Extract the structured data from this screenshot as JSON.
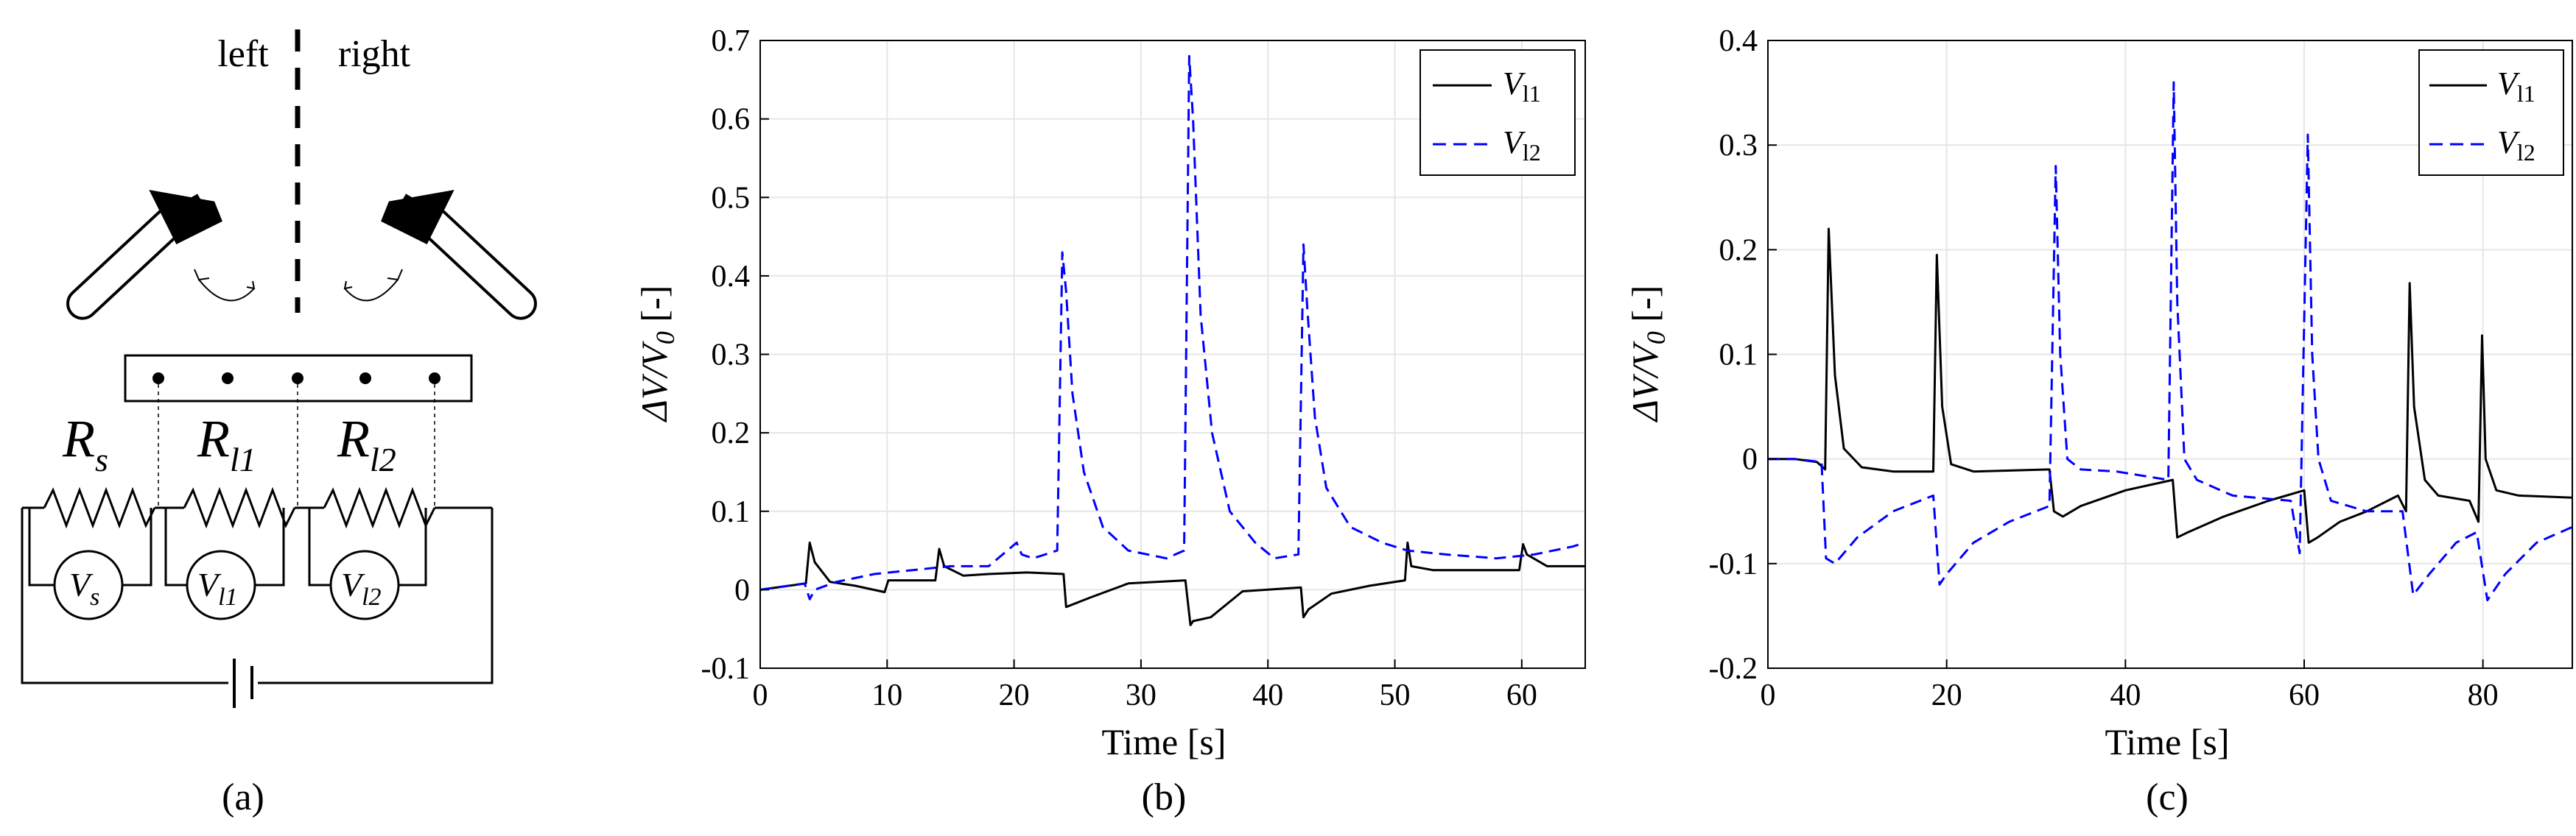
{
  "panels": {
    "a": "(a)",
    "b": "(b)",
    "c": "(c)"
  },
  "schematic": {
    "left_label": "left",
    "right_label": "right",
    "resistors": [
      {
        "base": "R",
        "sub": "s"
      },
      {
        "base": "R",
        "sub": "l1"
      },
      {
        "base": "R",
        "sub": "l2"
      }
    ],
    "voltmeters": [
      {
        "base": "V",
        "sub": "s"
      },
      {
        "base": "V",
        "sub": "l1"
      },
      {
        "base": "V",
        "sub": "l2"
      }
    ]
  },
  "chart_data": [
    {
      "type": "line",
      "panel": "(b)",
      "xlabel": "Time [s]",
      "ylabel": "ΔV/V0 [-]",
      "xlim": [
        0,
        65
      ],
      "ylim": [
        -0.1,
        0.7
      ],
      "xticks": [
        0,
        10,
        20,
        30,
        40,
        50,
        60
      ],
      "xtick_labels": [
        "0",
        "10",
        "20",
        "30",
        "40",
        "50",
        "60"
      ],
      "yticks": [
        -0.1,
        0,
        0.1,
        0.2,
        0.3,
        0.4,
        0.5,
        0.6,
        0.7
      ],
      "ytick_labels": [
        "-0.1",
        "0",
        "0.1",
        "0.2",
        "0.3",
        "0.4",
        "0.5",
        "0.6",
        "0.7"
      ],
      "grid": true,
      "legend": "top-right",
      "series": [
        {
          "name": "V_l1",
          "label_base": "V",
          "label_sub": "l1",
          "color": "#000000",
          "dash": "solid",
          "x": [
            0,
            3.6,
            3.9,
            4.3,
            5.5,
            7.5,
            9.8,
            10.1,
            13.8,
            14.1,
            14.5,
            16.0,
            18.0,
            21.0,
            23.9,
            24.1,
            26.0,
            29.0,
            33.5,
            33.9,
            34.1,
            35.5,
            38.0,
            42.6,
            42.8,
            43.2,
            45.0,
            48.0,
            50.8,
            51.0,
            51.3,
            53.0,
            56.0,
            59.8,
            60.1,
            60.4,
            62.0,
            65.0
          ],
          "values": [
            0,
            0.008,
            0.06,
            0.035,
            0.01,
            0.005,
            -0.003,
            0.012,
            0.012,
            0.052,
            0.03,
            0.018,
            0.02,
            0.022,
            0.02,
            -0.022,
            -0.01,
            0.008,
            0.012,
            -0.045,
            -0.04,
            -0.035,
            -0.002,
            0.003,
            -0.035,
            -0.025,
            -0.005,
            0.005,
            0.012,
            0.06,
            0.03,
            0.025,
            0.025,
            0.025,
            0.058,
            0.045,
            0.03,
            0.03
          ]
        },
        {
          "name": "V_l2",
          "label_base": "V",
          "label_sub": "l2",
          "color": "#0000ff",
          "dash": "dashed",
          "x": [
            0,
            3.5,
            3.9,
            4.3,
            6.0,
            9.0,
            12.0,
            15.0,
            18.0,
            20.2,
            20.6,
            21.5,
            23.4,
            23.8,
            24.1,
            24.6,
            25.5,
            27.0,
            29.0,
            32.0,
            33.4,
            33.8,
            34.1,
            34.7,
            35.6,
            37.0,
            39.0,
            40.5,
            42.4,
            42.8,
            43.1,
            43.7,
            44.6,
            46.5,
            49.0,
            51.0,
            54.0,
            58.0,
            61.0,
            64.0,
            65.0
          ],
          "values": [
            0,
            0.008,
            -0.012,
            0.0,
            0.01,
            0.02,
            0.025,
            0.03,
            0.03,
            0.06,
            0.045,
            0.04,
            0.05,
            0.43,
            0.38,
            0.25,
            0.15,
            0.08,
            0.05,
            0.04,
            0.05,
            0.68,
            0.6,
            0.35,
            0.2,
            0.1,
            0.06,
            0.04,
            0.045,
            0.44,
            0.36,
            0.22,
            0.13,
            0.08,
            0.06,
            0.05,
            0.045,
            0.04,
            0.045,
            0.055,
            0.06
          ]
        }
      ]
    },
    {
      "type": "line",
      "panel": "(c)",
      "xlabel": "Time [s]",
      "ylabel": "ΔV/V0 [-]",
      "xlim": [
        0,
        90
      ],
      "ylim": [
        -0.2,
        0.4
      ],
      "xticks": [
        0,
        20,
        40,
        60,
        80
      ],
      "xtick_labels": [
        "0",
        "20",
        "40",
        "60",
        "80"
      ],
      "yticks": [
        -0.2,
        -0.1,
        0,
        0.1,
        0.2,
        0.3,
        0.4
      ],
      "ytick_labels": [
        "-0.2",
        "-0.1",
        "0",
        "0.1",
        "0.2",
        "0.3",
        "0.4"
      ],
      "grid": true,
      "legend": "top-right",
      "series": [
        {
          "name": "V_l1",
          "label_base": "V",
          "label_sub": "l1",
          "color": "#000000",
          "dash": "solid",
          "x": [
            0,
            3.0,
            5.5,
            6.4,
            6.8,
            7.5,
            8.5,
            10.5,
            14.0,
            18.5,
            18.9,
            19.5,
            20.5,
            23.0,
            31.5,
            32.0,
            33.0,
            35.0,
            40.0,
            45.3,
            45.8,
            47.0,
            51.0,
            56.0,
            60.0,
            60.5,
            61.5,
            64.0,
            67.0,
            70.5,
            71.4,
            71.8,
            72.3,
            73.5,
            75.0,
            78.5,
            79.5,
            79.9,
            80.3,
            81.5,
            84.0,
            90.0
          ],
          "values": [
            0,
            0,
            -0.003,
            -0.01,
            0.22,
            0.08,
            0.01,
            -0.008,
            -0.012,
            -0.012,
            0.195,
            0.05,
            -0.005,
            -0.012,
            -0.01,
            -0.05,
            -0.055,
            -0.045,
            -0.03,
            -0.02,
            -0.075,
            -0.07,
            -0.055,
            -0.04,
            -0.03,
            -0.08,
            -0.075,
            -0.06,
            -0.05,
            -0.035,
            -0.05,
            0.168,
            0.05,
            -0.02,
            -0.035,
            -0.04,
            -0.06,
            0.118,
            0.0,
            -0.03,
            -0.035,
            -0.037
          ]
        },
        {
          "name": "V_l2",
          "label_base": "V",
          "label_sub": "l2",
          "color": "#0000ff",
          "dash": "dashed",
          "x": [
            0,
            3.0,
            6.0,
            6.5,
            7.5,
            10.0,
            14.0,
            18.5,
            19.2,
            20.0,
            23.0,
            27.0,
            31.5,
            32.2,
            32.7,
            33.5,
            35.0,
            39.0,
            44.8,
            45.4,
            45.8,
            46.6,
            48.0,
            52.0,
            58.5,
            59.5,
            60.4,
            60.9,
            61.6,
            63.0,
            67.0,
            71.0,
            72.2,
            74.0,
            77.0,
            79.3,
            80.5,
            82.5,
            86.0,
            90.0
          ],
          "values": [
            0,
            0,
            -0.003,
            -0.095,
            -0.1,
            -0.075,
            -0.05,
            -0.035,
            -0.12,
            -0.11,
            -0.08,
            -0.06,
            -0.045,
            0.28,
            0.1,
            0.0,
            -0.01,
            -0.012,
            -0.02,
            0.36,
            0.15,
            0.0,
            -0.02,
            -0.035,
            -0.04,
            -0.09,
            0.31,
            0.1,
            0.0,
            -0.04,
            -0.05,
            -0.05,
            -0.13,
            -0.11,
            -0.08,
            -0.07,
            -0.135,
            -0.11,
            -0.08,
            -0.065
          ]
        }
      ]
    }
  ]
}
